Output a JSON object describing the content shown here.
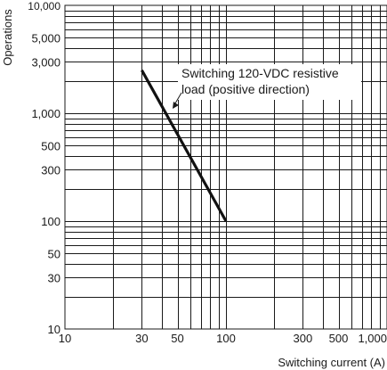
{
  "chart_data": {
    "type": "line",
    "title": "",
    "xlabel": "Switching current (A)",
    "ylabel": "Operations",
    "x_scale": "log",
    "y_scale": "log",
    "xlim": [
      10,
      1000
    ],
    "ylim": [
      10,
      10000
    ],
    "grid": true,
    "x_ticks": [
      10,
      30,
      50,
      100,
      300,
      500,
      1000
    ],
    "x_tick_labels": [
      "10",
      "30",
      "50",
      "100",
      "300",
      "500",
      "1,000"
    ],
    "y_ticks": [
      10,
      30,
      50,
      100,
      300,
      500,
      1000,
      3000,
      5000,
      10000
    ],
    "y_tick_labels": [
      "10",
      "30",
      "50",
      "100",
      "300",
      "500",
      "1,000",
      "3,000",
      "5,000",
      "10,000"
    ],
    "series": [
      {
        "name": "Switching 120-VDC resistive load (positive direction)",
        "x": [
          30,
          100
        ],
        "y": [
          2500,
          100
        ],
        "color": "#111111"
      }
    ],
    "annotation": {
      "line1": "Switching 120-VDC resistive",
      "line2": "load (positive direction)"
    }
  }
}
